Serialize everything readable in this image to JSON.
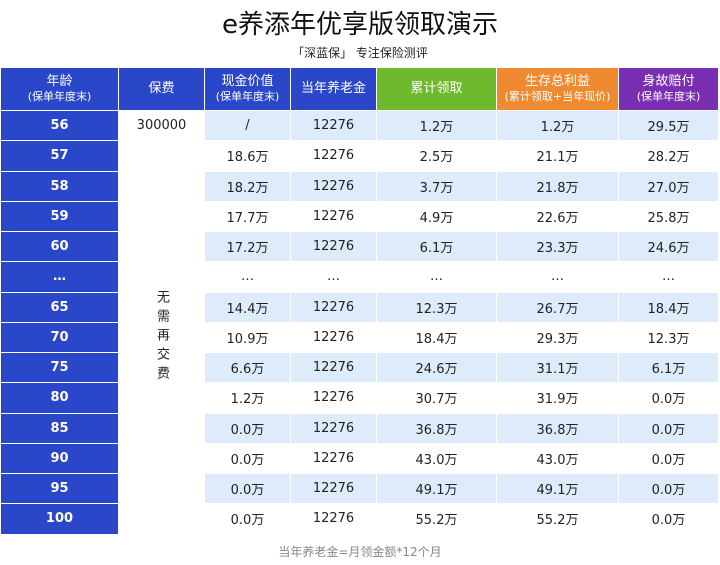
{
  "title": "e养添年优享版领取演示",
  "subtitle": "「深蓝保」 专注保险测评",
  "headers": [
    {
      "label": "年龄",
      "sub": "(保单年度末)",
      "color": "blue"
    },
    {
      "label": "保费",
      "sub": "",
      "color": "blue"
    },
    {
      "label": "现金价值",
      "sub": "(保单年度末)",
      "color": "blue"
    },
    {
      "label": "当年养老金",
      "sub": "",
      "color": "blue"
    },
    {
      "label": "累计领取",
      "sub": "",
      "color": "green"
    },
    {
      "label": "生存总利益",
      "sub": "(累计领取+当年现价)",
      "color": "orange"
    },
    {
      "label": "身故赔付",
      "sub": "(保单年度末)",
      "color": "purple"
    }
  ],
  "first_row_premium": "300000",
  "merged_premium": "无需再交费",
  "rows": [
    {
      "age": "56",
      "cash": "/",
      "pension": "12276",
      "cumulative": "1.2万",
      "survival": "1.2万",
      "death": "29.5万"
    },
    {
      "age": "57",
      "cash": "18.6万",
      "pension": "12276",
      "cumulative": "2.5万",
      "survival": "21.1万",
      "death": "28.2万"
    },
    {
      "age": "58",
      "cash": "18.2万",
      "pension": "12276",
      "cumulative": "3.7万",
      "survival": "21.8万",
      "death": "27.0万"
    },
    {
      "age": "59",
      "cash": "17.7万",
      "pension": "12276",
      "cumulative": "4.9万",
      "survival": "22.6万",
      "death": "25.8万"
    },
    {
      "age": "60",
      "cash": "17.2万",
      "pension": "12276",
      "cumulative": "6.1万",
      "survival": "23.3万",
      "death": "24.6万"
    },
    {
      "age": "…",
      "cash": "…",
      "pension": "…",
      "cumulative": "…",
      "survival": "…",
      "death": "…"
    },
    {
      "age": "65",
      "cash": "14.4万",
      "pension": "12276",
      "cumulative": "12.3万",
      "survival": "26.7万",
      "death": "18.4万"
    },
    {
      "age": "70",
      "cash": "10.9万",
      "pension": "12276",
      "cumulative": "18.4万",
      "survival": "29.3万",
      "death": "12.3万"
    },
    {
      "age": "75",
      "cash": "6.6万",
      "pension": "12276",
      "cumulative": "24.6万",
      "survival": "31.1万",
      "death": "6.1万"
    },
    {
      "age": "80",
      "cash": "1.2万",
      "pension": "12276",
      "cumulative": "30.7万",
      "survival": "31.9万",
      "death": "0.0万"
    },
    {
      "age": "85",
      "cash": "0.0万",
      "pension": "12276",
      "cumulative": "36.8万",
      "survival": "36.8万",
      "death": "0.0万"
    },
    {
      "age": "90",
      "cash": "0.0万",
      "pension": "12276",
      "cumulative": "43.0万",
      "survival": "43.0万",
      "death": "0.0万"
    },
    {
      "age": "95",
      "cash": "0.0万",
      "pension": "12276",
      "cumulative": "49.1万",
      "survival": "49.1万",
      "death": "0.0万"
    },
    {
      "age": "100",
      "cash": "0.0万",
      "pension": "12276",
      "cumulative": "55.2万",
      "survival": "55.2万",
      "death": "0.0万"
    }
  ],
  "footnote": "当年养老金=月领金额*12个月"
}
